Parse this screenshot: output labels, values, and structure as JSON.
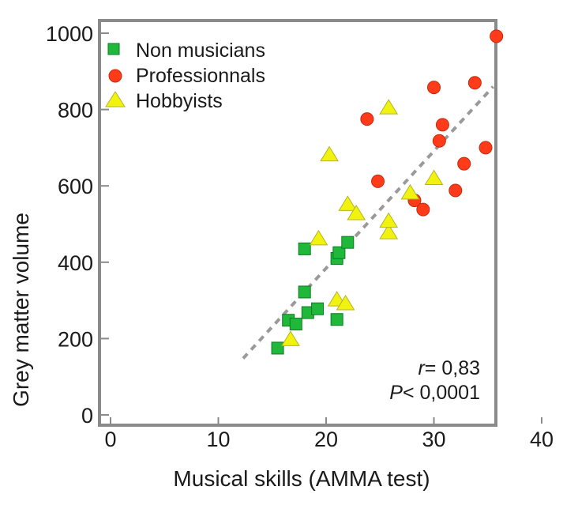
{
  "chart_data": {
    "type": "scatter",
    "xlabel": "Musical skills (AMMA test)",
    "ylabel": "Grey matter volume",
    "xlim": [
      0,
      40
    ],
    "ylim": [
      0,
      1000
    ],
    "x_ticks": [
      0,
      10,
      20,
      30,
      40
    ],
    "y_ticks": [
      0,
      200,
      400,
      600,
      800,
      1000
    ],
    "grid": false,
    "legend_position": "top-left",
    "series": [
      {
        "name": "Non musicians",
        "marker": "square",
        "color": "#1fb83a",
        "points": [
          {
            "x": 15.5,
            "y": 175
          },
          {
            "x": 16.5,
            "y": 248
          },
          {
            "x": 17.2,
            "y": 238
          },
          {
            "x": 18.0,
            "y": 322
          },
          {
            "x": 18.0,
            "y": 435
          },
          {
            "x": 18.3,
            "y": 268
          },
          {
            "x": 19.2,
            "y": 278
          },
          {
            "x": 21.0,
            "y": 250
          },
          {
            "x": 21.0,
            "y": 410
          },
          {
            "x": 21.2,
            "y": 425
          },
          {
            "x": 22.0,
            "y": 452
          }
        ]
      },
      {
        "name": "Professionnals",
        "marker": "circle",
        "color": "#ff3b1a",
        "points": [
          {
            "x": 23.8,
            "y": 775
          },
          {
            "x": 24.8,
            "y": 612
          },
          {
            "x": 28.2,
            "y": 562
          },
          {
            "x": 29.0,
            "y": 538
          },
          {
            "x": 30.0,
            "y": 858
          },
          {
            "x": 30.5,
            "y": 718
          },
          {
            "x": 30.8,
            "y": 760
          },
          {
            "x": 32.0,
            "y": 588
          },
          {
            "x": 32.8,
            "y": 658
          },
          {
            "x": 33.8,
            "y": 870
          },
          {
            "x": 34.8,
            "y": 700
          },
          {
            "x": 35.8,
            "y": 992
          }
        ]
      },
      {
        "name": "Hobbyists",
        "marker": "triangle",
        "color": "#f2f210",
        "points": [
          {
            "x": 16.7,
            "y": 198
          },
          {
            "x": 19.3,
            "y": 462
          },
          {
            "x": 20.3,
            "y": 682
          },
          {
            "x": 21.0,
            "y": 302
          },
          {
            "x": 21.8,
            "y": 292
          },
          {
            "x": 22.0,
            "y": 552
          },
          {
            "x": 22.8,
            "y": 528
          },
          {
            "x": 25.8,
            "y": 478
          },
          {
            "x": 25.8,
            "y": 508
          },
          {
            "x": 25.8,
            "y": 805
          },
          {
            "x": 27.8,
            "y": 582
          },
          {
            "x": 30.0,
            "y": 620
          }
        ]
      }
    ],
    "trendline": {
      "style": "dashed",
      "color": "#9a9a9a",
      "from": [
        12.3,
        148
      ],
      "to": [
        35.5,
        860
      ]
    },
    "annotations": {
      "r_symbol": "r",
      "r_value": "= 0,83",
      "p_symbol": "P",
      "p_value": "< 0,0001"
    }
  }
}
